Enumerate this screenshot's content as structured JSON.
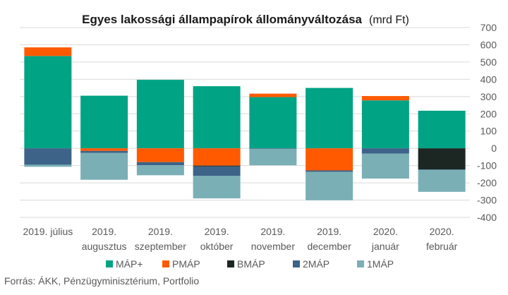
{
  "chart_data": {
    "type": "bar",
    "stacked": true,
    "title": "Egyes lakossági állampapírok állományváltozása",
    "unit": "(mrd Ft)",
    "source": "Forrás: ÁKK, Pénzügyminisztérium, Portfolio",
    "ylim": [
      -400,
      700
    ],
    "yticks": [
      700,
      600,
      500,
      400,
      300,
      200,
      100,
      0,
      -100,
      -200,
      -300,
      -400
    ],
    "y_axis_position": "right",
    "grid": true,
    "legend_position": "bottom",
    "categories": [
      [
        "2019. július"
      ],
      [
        "2019.",
        "augusztus"
      ],
      [
        "2019.",
        "szeptember"
      ],
      [
        "2019.",
        "október"
      ],
      [
        "2019.",
        "november"
      ],
      [
        "2019.",
        "december"
      ],
      [
        "2020.",
        "január"
      ],
      [
        "2020.",
        "február"
      ]
    ],
    "series": [
      {
        "name": "MÁP+",
        "color": "#00a383",
        "values": [
          535,
          305,
          397,
          360,
          297,
          350,
          278,
          218
        ]
      },
      {
        "name": "PMÁP",
        "color": "#ff5a00",
        "values": [
          50,
          -15,
          -80,
          -100,
          20,
          -128,
          25,
          0
        ]
      },
      {
        "name": "BMÁP",
        "color": "#1c2723",
        "values": [
          0,
          0,
          0,
          -5,
          0,
          0,
          0,
          -122
        ]
      },
      {
        "name": "2MÁP",
        "color": "#3d6388",
        "values": [
          -95,
          -12,
          -18,
          -55,
          -3,
          -8,
          -30,
          -3
        ]
      },
      {
        "name": "1MÁP",
        "color": "#7aafb5",
        "values": [
          -12,
          -155,
          -58,
          -130,
          -95,
          -165,
          -145,
          -127
        ]
      }
    ]
  }
}
